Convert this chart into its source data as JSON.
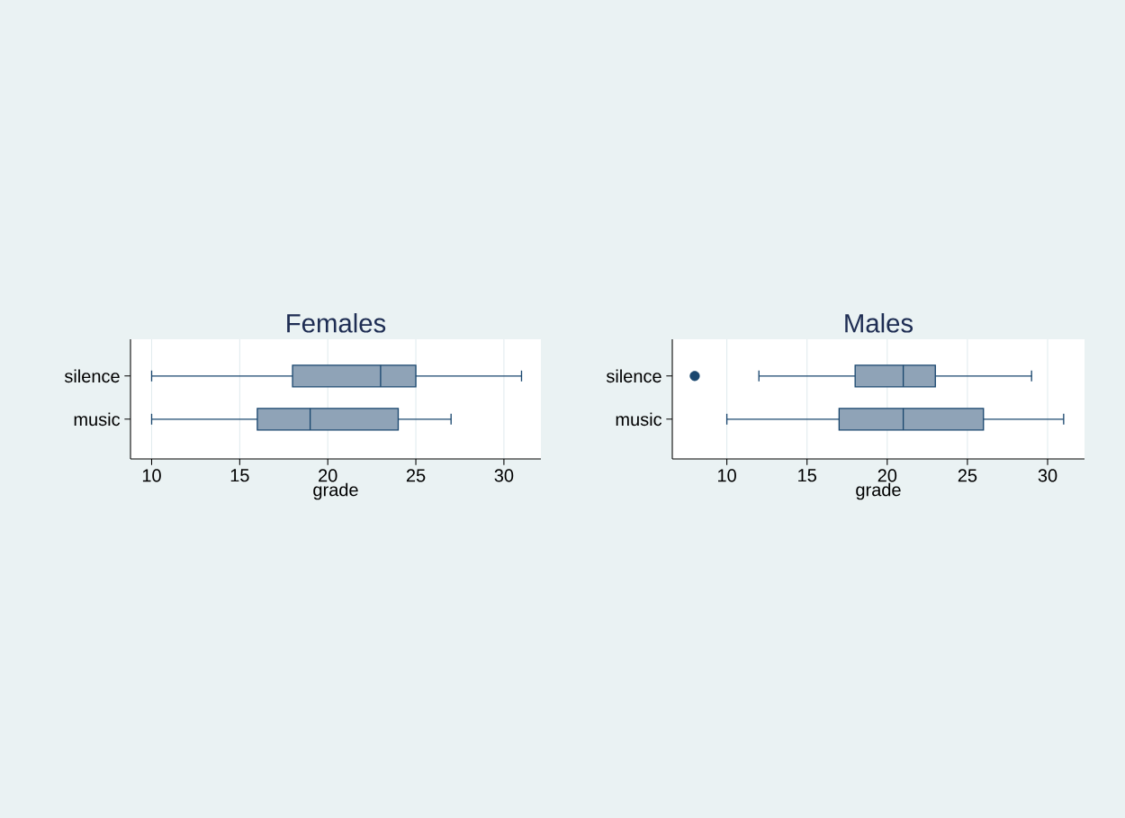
{
  "chart_data": [
    {
      "type": "box",
      "title": "Females",
      "xlabel": "grade",
      "orientation": "horizontal",
      "categories": [
        "silence",
        "music"
      ],
      "color": "#8fa3b7",
      "boxes": [
        {
          "low": 10,
          "q1": 18,
          "median": 23,
          "q3": 25,
          "high": 31
        },
        {
          "low": 10,
          "q1": 16,
          "median": 19,
          "q3": 24,
          "high": 27
        }
      ],
      "xlim": [
        8.8,
        32.1
      ],
      "xticks": [
        10,
        15,
        20,
        25,
        30
      ],
      "grid": "x"
    },
    {
      "type": "box",
      "title": "Males",
      "xlabel": "grade",
      "orientation": "horizontal",
      "categories": [
        "silence",
        "music"
      ],
      "color": "#8fa3b7",
      "boxes": [
        {
          "low": 12,
          "q1": 18,
          "median": 21,
          "q3": 23,
          "high": 29,
          "outliers": [
            8
          ]
        },
        {
          "low": 10,
          "q1": 17,
          "median": 21,
          "q3": 26,
          "high": 31
        }
      ],
      "xlim": [
        6.6,
        32.3
      ],
      "xticks": [
        10,
        15,
        20,
        25,
        30
      ],
      "grid": "x"
    }
  ]
}
